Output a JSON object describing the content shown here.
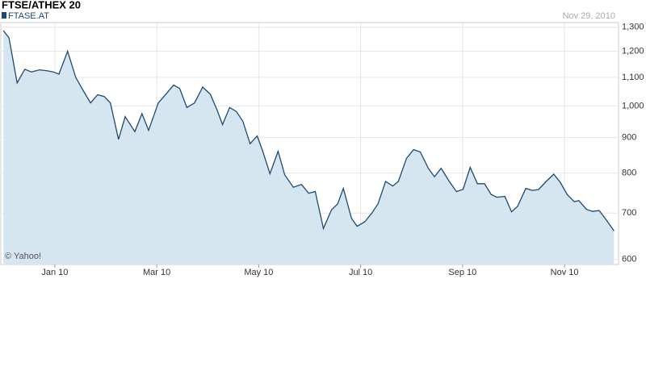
{
  "chart_data": {
    "type": "area",
    "title": "FTSE/ATHEX 20",
    "date": "Nov 29, 2010",
    "credit": "© Yahoo!",
    "log_scale": true,
    "grid": true,
    "series": [
      {
        "name": "FTASE.AT",
        "color": "#1c4a73",
        "fill": "#d6e6f1",
        "x": [
          -0.01,
          0.1,
          0.26,
          0.41,
          0.54,
          0.7,
          0.86,
          0.97,
          1.08,
          1.25,
          1.41,
          1.55,
          1.7,
          1.84,
          1.97,
          2.09,
          2.25,
          2.38,
          2.57,
          2.71,
          2.84,
          3.03,
          3.18,
          3.33,
          3.45,
          3.59,
          3.74,
          3.9,
          4.05,
          4.18,
          4.29,
          4.43,
          4.56,
          4.69,
          4.83,
          4.97,
          5.08,
          5.22,
          5.38,
          5.51,
          5.68,
          5.84,
          5.98,
          6.11,
          6.27,
          6.43,
          6.55,
          6.66,
          6.82,
          6.93,
          7.08,
          7.22,
          7.34,
          7.49,
          7.63,
          7.74,
          7.9,
          8.04,
          8.17,
          8.33,
          8.45,
          8.58,
          8.74,
          8.88,
          9.01,
          9.15,
          9.29,
          9.43,
          9.56,
          9.67,
          9.83,
          9.96,
          10.08,
          10.24,
          10.37,
          10.49,
          10.64,
          10.79,
          10.92,
          11.05,
          11.19,
          11.28,
          11.43,
          11.55,
          11.68,
          11.82,
          11.97
        ],
        "values": [
          1285,
          1255,
          1080,
          1130,
          1120,
          1128,
          1124,
          1120,
          1112,
          1200,
          1100,
          1055,
          1010,
          1038,
          1032,
          1010,
          895,
          965,
          918,
          975,
          922,
          1010,
          1040,
          1072,
          1060,
          995,
          1010,
          1065,
          1040,
          988,
          940,
          995,
          982,
          950,
          882,
          905,
          860,
          798,
          860,
          795,
          763,
          770,
          748,
          752,
          665,
          708,
          722,
          760,
          688,
          670,
          680,
          700,
          722,
          778,
          766,
          778,
          840,
          865,
          858,
          812,
          790,
          813,
          778,
          752,
          758,
          815,
          772,
          772,
          745,
          738,
          740,
          703,
          716,
          760,
          755,
          757,
          778,
          797,
          775,
          745,
          727,
          730,
          709,
          704,
          706,
          684,
          660
        ]
      }
    ],
    "xlim": [
      -0.06,
      12.06
    ],
    "xticks": [
      {
        "value": 1,
        "label": "Jan 10"
      },
      {
        "value": 3,
        "label": "Mar 10"
      },
      {
        "value": 5,
        "label": "May 10"
      },
      {
        "value": 7,
        "label": "Jul 10"
      },
      {
        "value": 9,
        "label": "Sep 10"
      },
      {
        "value": 11,
        "label": "Nov 10"
      }
    ],
    "ylim": [
      590,
      1320
    ],
    "yticks": [
      600,
      700,
      800,
      900,
      {
        "value": 1000,
        "label": "1,000"
      },
      {
        "value": 1100,
        "label": "1,100"
      },
      {
        "value": 1200,
        "label": "1,200"
      },
      {
        "value": 1300,
        "label": "1,300"
      }
    ]
  }
}
